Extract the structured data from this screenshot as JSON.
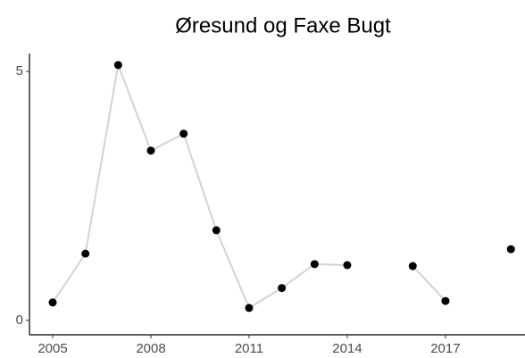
{
  "chart_data": {
    "type": "line",
    "title": "Øresund og Faxe Bugt",
    "x": [
      2005,
      2006,
      2007,
      2008,
      2009,
      2010,
      2011,
      2012,
      2013,
      2014,
      2015,
      2016,
      2017,
      2018,
      2019
    ],
    "series": [
      {
        "line_color": "#d3d3d3",
        "color": "#000000",
        "values": [
          0.36,
          1.34,
          5.13,
          3.41,
          3.75,
          1.81,
          0.25,
          0.65,
          1.13,
          1.11,
          null,
          1.09,
          0.39,
          null,
          1.43
        ]
      }
    ],
    "xlim": [
      2004.29,
      2019.43
    ],
    "xticks": [
      2005,
      2008,
      2011,
      2014,
      2017
    ],
    "ylim": [
      -0.29,
      5.36
    ],
    "yticks": [
      0,
      5
    ],
    "grid": false
  }
}
